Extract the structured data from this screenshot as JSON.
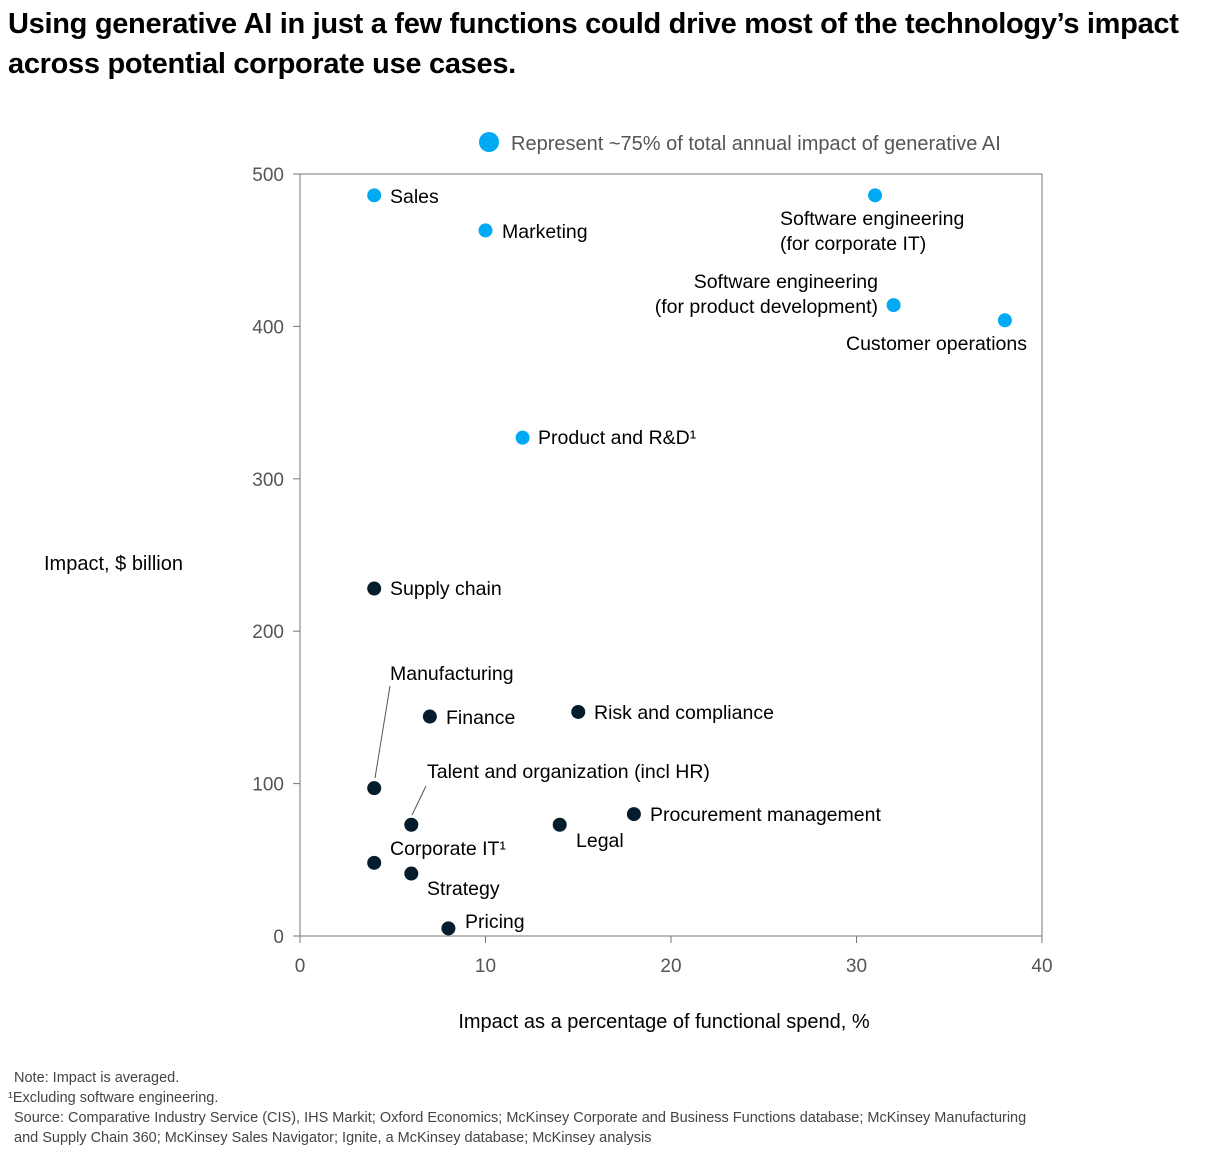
{
  "title": "Using generative AI in just a few functions could drive most of the technology’s impact across potential corporate use cases.",
  "notes": {
    "note": "Note: Impact is averaged.",
    "footnote": "¹Excluding software engineering.",
    "source_line1": "Source: Comparative Industry Service (CIS), IHS Markit; Oxford Economics; McKinsey Corporate and Business Functions database; McKinsey Manufacturing",
    "source_line2": "and Supply Chain 360; McKinsey Sales Navigator; Ignite, a McKinsey database; McKinsey analysis"
  },
  "chart_data": {
    "type": "scatter",
    "title": "",
    "xlabel": "Impact as a percentage of functional spend, %",
    "ylabel": "Impact, $ billion",
    "xlim": [
      0,
      40
    ],
    "ylim": [
      0,
      500
    ],
    "xticks": [
      "0",
      "10",
      "20",
      "30",
      "40"
    ],
    "yticks": [
      "0",
      "100",
      "200",
      "300",
      "400",
      "500"
    ],
    "grid": false,
    "legend": {
      "placement": "top",
      "entries": [
        {
          "label": "Represent ~75% of total annual impact of generative AI",
          "color": "#00a9f4"
        }
      ]
    },
    "colors": {
      "highlight": "#00a9f4",
      "other": "#051c2c"
    },
    "points": [
      {
        "label": "Sales",
        "x": 4,
        "y": 486,
        "highlight": true
      },
      {
        "label": "Marketing",
        "x": 10,
        "y": 463,
        "highlight": true
      },
      {
        "label": "Software engineering\n(for corporate IT)",
        "x": 31,
        "y": 486,
        "highlight": true
      },
      {
        "label": "Software engineering\n(for product development)",
        "x": 32,
        "y": 414,
        "highlight": true
      },
      {
        "label": "Customer operations",
        "x": 38,
        "y": 404,
        "highlight": true
      },
      {
        "label": "Product and R&D¹",
        "x": 12,
        "y": 327,
        "highlight": true
      },
      {
        "label": "Supply chain",
        "x": 4,
        "y": 228,
        "highlight": false
      },
      {
        "label": "Manufacturing",
        "x": 4,
        "y": 97,
        "highlight": false
      },
      {
        "label": "Finance",
        "x": 7,
        "y": 144,
        "highlight": false
      },
      {
        "label": "Risk and compliance",
        "x": 15,
        "y": 147,
        "highlight": false
      },
      {
        "label": "Talent and organization (incl HR)",
        "x": 6,
        "y": 73,
        "highlight": false
      },
      {
        "label": "Procurement management",
        "x": 18,
        "y": 80,
        "highlight": false
      },
      {
        "label": "Legal",
        "x": 14,
        "y": 73,
        "highlight": false
      },
      {
        "label": "Corporate IT¹",
        "x": 4,
        "y": 48,
        "highlight": false
      },
      {
        "label": "Strategy",
        "x": 6,
        "y": 41,
        "highlight": false
      },
      {
        "label": "Pricing",
        "x": 8,
        "y": 5,
        "highlight": false
      }
    ]
  }
}
